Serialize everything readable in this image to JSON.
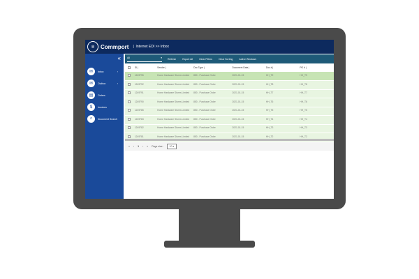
{
  "app": {
    "brand": "Commport",
    "breadcrumb": "Internet EDI >> Inbox"
  },
  "sidebar": {
    "items": [
      {
        "label": "Inbox",
        "icon": "inbox-icon",
        "glyph": "✉",
        "chevron": true
      },
      {
        "label": "Outbox",
        "icon": "outbox-icon",
        "glyph": "✉",
        "chevron": true
      },
      {
        "label": "Orders",
        "icon": "orders-icon",
        "glyph": "▤",
        "chevron": false
      },
      {
        "label": "Invoices",
        "icon": "dollar-icon",
        "glyph": "$",
        "chevron": false
      },
      {
        "label": "Document Search",
        "icon": "search-icon",
        "glyph": "⌕",
        "chevron": false
      }
    ]
  },
  "toolbar": {
    "filter": "All",
    "buttons": [
      "Refresh",
      "Export All",
      "Clear Filters",
      "Clear Sorting",
      "Active Windows"
    ]
  },
  "table": {
    "columns": [
      "ID",
      "Sender",
      "Doc Type",
      "Document Date",
      "Doc #",
      "PO #",
      "Received"
    ],
    "rows": [
      [
        "1249795",
        "Home Hardware Stores Limited",
        "850 - Purchase Order",
        "2021-01-15",
        "HH_T9",
        "HH_T9",
        "2022-04"
      ],
      [
        "1249792",
        "Home Hardware Stores Limited",
        "850 - Purchase Order",
        "2021-01-15",
        "HH_T8",
        "HH_T8",
        "2022-04"
      ],
      [
        "1249791",
        "Home Hardware Stores Limited",
        "850 - Purchase Order",
        "2021-01-15",
        "HH_T7",
        "HH_T7",
        "2022-04"
      ],
      [
        "1249790",
        "Home Hardware Stores Limited",
        "850 - Purchase Order",
        "2021-01-15",
        "HH_T6",
        "HH_T6",
        "2022-04"
      ],
      [
        "1249785",
        "Home Hardware Stores Limited",
        "850 - Purchase Order",
        "2021-01-15",
        "HH_T5",
        "HH_T5",
        "2022-04"
      ],
      [
        "1249783",
        "Home Hardware Stores Limited",
        "850 - Purchase Order",
        "2021-01-15",
        "HH_T4",
        "HH_T4",
        "2022-04"
      ],
      [
        "1249782",
        "Home Hardware Stores Limited",
        "850 - Purchase Order",
        "2021-01-15",
        "HH_T3",
        "HH_T3",
        "2022-04"
      ],
      [
        "1249781",
        "Home Hardware Stores Limited",
        "850 - Purchase Order",
        "2021-01-15",
        "HH_T2",
        "HH_T2",
        "2022-04"
      ]
    ]
  },
  "pager": {
    "page": "1",
    "page_size_label": "Page size:",
    "page_size": "10"
  }
}
